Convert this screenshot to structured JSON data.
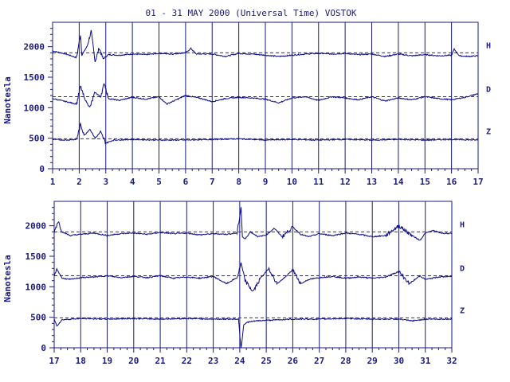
{
  "title": "01 - 31 MAY 2000 (Universal Time) VOSTOK",
  "colors": {
    "ink": "#1a1a80",
    "line": "#0a0a8c",
    "background": "#ffffff"
  },
  "chart_data": [
    {
      "type": "line",
      "title": "01 - 31 MAY 2000 (Universal Time) VOSTOK",
      "ylabel": "Nanotesla",
      "xlim": [
        1,
        17
      ],
      "ylim": [
        0,
        2400
      ],
      "x_ticks": [
        "1",
        "2",
        "3",
        "4",
        "5",
        "6",
        "7",
        "8",
        "9",
        "10",
        "11",
        "12",
        "13",
        "14",
        "15",
        "16",
        "17"
      ],
      "y_ticks": [
        "0",
        "500",
        "1000",
        "1500",
        "2000"
      ],
      "grid": "vertical lines at each day",
      "series": [
        {
          "name": "H",
          "baseline": 1900,
          "x": [
            1,
            1.5,
            1.9,
            2.05,
            2.1,
            2.3,
            2.45,
            2.6,
            2.75,
            2.9,
            3.1,
            3.5,
            4,
            4.5,
            5,
            5.5,
            6,
            6.2,
            6.4,
            7,
            7.5,
            8,
            8.5,
            9,
            9.5,
            10,
            10.5,
            11,
            11.5,
            12,
            12.5,
            13,
            13.5,
            14,
            14.5,
            15,
            15.5,
            16,
            16.1,
            16.3,
            16.6,
            17
          ],
          "values": [
            1930,
            1880,
            1820,
            2200,
            1860,
            2010,
            2250,
            1760,
            1980,
            1800,
            1870,
            1860,
            1880,
            1870,
            1890,
            1880,
            1900,
            1970,
            1880,
            1880,
            1840,
            1890,
            1880,
            1860,
            1840,
            1860,
            1880,
            1890,
            1880,
            1890,
            1870,
            1880,
            1840,
            1880,
            1850,
            1870,
            1850,
            1860,
            1960,
            1850,
            1840,
            1850
          ]
        },
        {
          "name": "D",
          "baseline": 1180,
          "x": [
            1,
            1.5,
            1.9,
            2.05,
            2.2,
            2.4,
            2.6,
            2.8,
            2.95,
            3.1,
            3.5,
            4,
            4.5,
            5,
            5.3,
            5.6,
            6,
            6.5,
            7,
            7.5,
            8,
            8.5,
            9,
            9.5,
            10,
            10.5,
            11,
            11.5,
            12,
            12.5,
            13,
            13.5,
            14,
            14.5,
            15,
            15.5,
            16,
            16.5,
            17
          ],
          "values": [
            1150,
            1100,
            1060,
            1350,
            1150,
            1000,
            1250,
            1180,
            1400,
            1150,
            1120,
            1170,
            1140,
            1180,
            1060,
            1120,
            1200,
            1160,
            1100,
            1150,
            1170,
            1160,
            1140,
            1080,
            1160,
            1180,
            1120,
            1180,
            1160,
            1130,
            1180,
            1110,
            1160,
            1130,
            1180,
            1150,
            1130,
            1170,
            1230
          ]
        },
        {
          "name": "Z",
          "baseline": 490,
          "x": [
            1,
            1.5,
            1.9,
            2.05,
            2.2,
            2.4,
            2.6,
            2.8,
            3,
            3.3,
            4,
            5,
            6,
            7,
            8,
            9,
            10,
            11,
            12,
            13,
            14,
            15,
            16,
            17
          ],
          "values": [
            480,
            470,
            480,
            720,
            550,
            650,
            500,
            600,
            420,
            470,
            480,
            470,
            470,
            480,
            490,
            470,
            480,
            470,
            480,
            470,
            480,
            470,
            480,
            470
          ]
        }
      ]
    },
    {
      "type": "line",
      "ylabel": "Nanotesla",
      "xlim": [
        17,
        32
      ],
      "ylim": [
        0,
        2400
      ],
      "x_ticks": [
        "17",
        "18",
        "19",
        "20",
        "21",
        "22",
        "23",
        "24",
        "25",
        "26",
        "27",
        "28",
        "29",
        "30",
        "31",
        "32"
      ],
      "y_ticks": [
        "0",
        "500",
        "1000",
        "1500",
        "2000"
      ],
      "grid": "vertical lines at each day",
      "series": [
        {
          "name": "H",
          "baseline": 1900,
          "x": [
            17,
            17.15,
            17.3,
            17.6,
            18,
            18.5,
            19,
            19.5,
            20,
            20.5,
            21,
            21.5,
            22,
            22.5,
            23,
            23.5,
            23.9,
            24.05,
            24.1,
            24.2,
            24.4,
            24.7,
            25,
            25.3,
            25.6,
            26,
            26.3,
            26.6,
            27,
            27.5,
            28,
            28.5,
            29,
            29.5,
            30,
            30.5,
            30.8,
            31,
            31.3,
            31.6,
            32
          ],
          "values": [
            1900,
            2080,
            1900,
            1840,
            1860,
            1880,
            1840,
            1870,
            1880,
            1860,
            1890,
            1870,
            1880,
            1850,
            1870,
            1860,
            1880,
            2300,
            1820,
            1780,
            1900,
            1820,
            1850,
            1960,
            1820,
            1980,
            1860,
            1820,
            1870,
            1840,
            1880,
            1860,
            1820,
            1840,
            2000,
            1840,
            1760,
            1880,
            1920,
            1880,
            1870
          ]
        },
        {
          "name": "D",
          "baseline": 1180,
          "x": [
            17,
            17.1,
            17.3,
            17.6,
            18,
            18.5,
            19,
            19.5,
            20,
            20.5,
            21,
            21.5,
            22,
            22.5,
            23,
            23.5,
            23.9,
            24.05,
            24.2,
            24.5,
            24.8,
            25.1,
            25.4,
            25.7,
            26,
            26.3,
            26.6,
            27,
            27.5,
            28,
            28.5,
            29,
            29.5,
            30,
            30.4,
            30.8,
            31,
            31.5,
            32
          ],
          "values": [
            1180,
            1290,
            1140,
            1120,
            1150,
            1160,
            1180,
            1150,
            1170,
            1150,
            1180,
            1140,
            1160,
            1140,
            1170,
            1050,
            1150,
            1380,
            1100,
            920,
            1150,
            1300,
            1050,
            1150,
            1280,
            1050,
            1120,
            1150,
            1170,
            1140,
            1160,
            1140,
            1160,
            1250,
            1050,
            1180,
            1120,
            1160,
            1170
          ]
        },
        {
          "name": "Z",
          "baseline": 490,
          "x": [
            17,
            17.1,
            17.3,
            18,
            19,
            20,
            21,
            22,
            23,
            23.95,
            24.05,
            24.15,
            24.3,
            24.6,
            25,
            25.5,
            26,
            27,
            28,
            29,
            30,
            30.5,
            31,
            32
          ],
          "values": [
            470,
            360,
            460,
            480,
            470,
            480,
            470,
            480,
            470,
            470,
            0,
            380,
            420,
            440,
            450,
            460,
            470,
            470,
            480,
            470,
            470,
            440,
            470,
            470
          ]
        }
      ]
    }
  ]
}
